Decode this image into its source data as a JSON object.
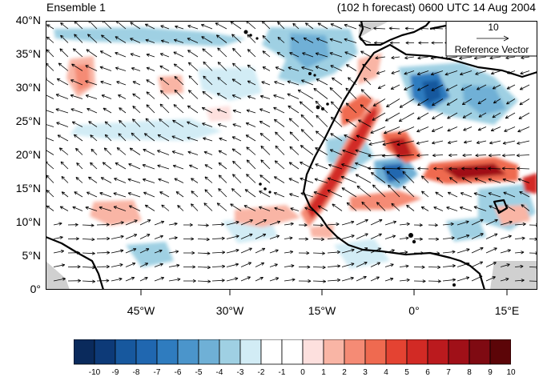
{
  "map": {
    "title_left": "Ensemble 1",
    "title_right": "(102 h forecast) 0600 UTC 14 Aug 2004",
    "lat_labels": [
      "40°N",
      "35°N",
      "30°N",
      "25°N",
      "20°N",
      "15°N",
      "10°N",
      "5°N",
      "0°"
    ],
    "lon_labels": [
      "45°W",
      "30°W",
      "15°W",
      "0°",
      "15°E"
    ],
    "reference_vector": {
      "value": "10",
      "label": "Reference Vector"
    },
    "colorbar": {
      "labels": [
        "-10",
        "-9",
        "-8",
        "-7",
        "-6",
        "-5",
        "-4",
        "-3",
        "-2",
        "-1",
        "0",
        "1",
        "2",
        "3",
        "4",
        "5",
        "6",
        "7",
        "8",
        "9",
        "10"
      ],
      "colors": [
        "#0a2a5c",
        "#0d3a78",
        "#17589e",
        "#2067b0",
        "#2f7cbf",
        "#4b95cb",
        "#6fb0d6",
        "#9fd0e3",
        "#d2ecf5",
        "#ffffff",
        "#ffffff",
        "#fde0de",
        "#f9b5a5",
        "#f58b75",
        "#ef6a50",
        "#e44332",
        "#d22a25",
        "#bb1a1e",
        "#a01018",
        "#7f0a12",
        "#5c0508"
      ]
    },
    "land_color": "#d0d0d0"
  }
}
